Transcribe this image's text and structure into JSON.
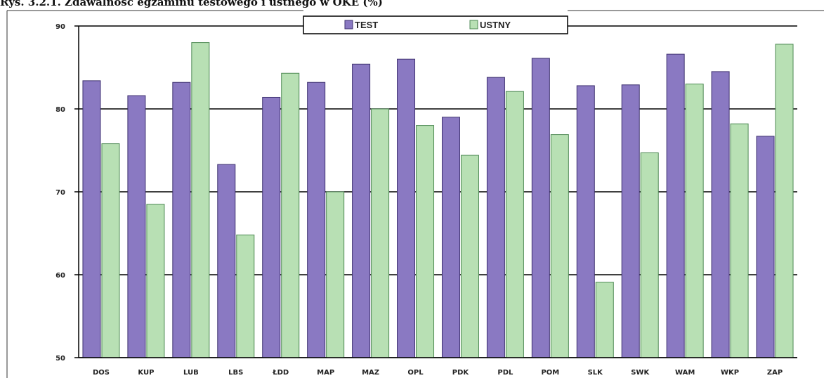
{
  "caption": "Rys. 3.2.1. Zdawalność egzaminu testowego i ustnego w OKE (%)",
  "colors": {
    "test_fill": "#8a79c2",
    "test_stroke": "#3f3270",
    "ustny_fill": "#b8e0b4",
    "ustny_stroke": "#4e8a54",
    "grid": "#000000"
  },
  "chart_data": {
    "type": "bar",
    "categories": [
      "DOS",
      "KUP",
      "LUB",
      "LBS",
      "ŁDD",
      "MAP",
      "MAZ",
      "OPL",
      "PDK",
      "PDL",
      "POM",
      "SLK",
      "SWK",
      "WAM",
      "WKP",
      "ZAP"
    ],
    "series": [
      {
        "name": "TEST",
        "values": [
          83.4,
          81.6,
          83.2,
          73.3,
          81.4,
          83.2,
          85.4,
          86.0,
          79.0,
          83.8,
          86.1,
          82.8,
          82.9,
          86.6,
          84.5,
          76.7
        ]
      },
      {
        "name": "USTNY",
        "values": [
          75.8,
          68.5,
          88.0,
          64.8,
          84.3,
          70.0,
          80.0,
          78.0,
          74.4,
          82.1,
          76.9,
          59.1,
          74.7,
          83.0,
          78.2,
          87.8
        ]
      }
    ],
    "yticks": [
      50,
      60,
      70,
      80,
      90
    ],
    "ylim": [
      50,
      90
    ],
    "grid": true,
    "legend": "top-center"
  }
}
